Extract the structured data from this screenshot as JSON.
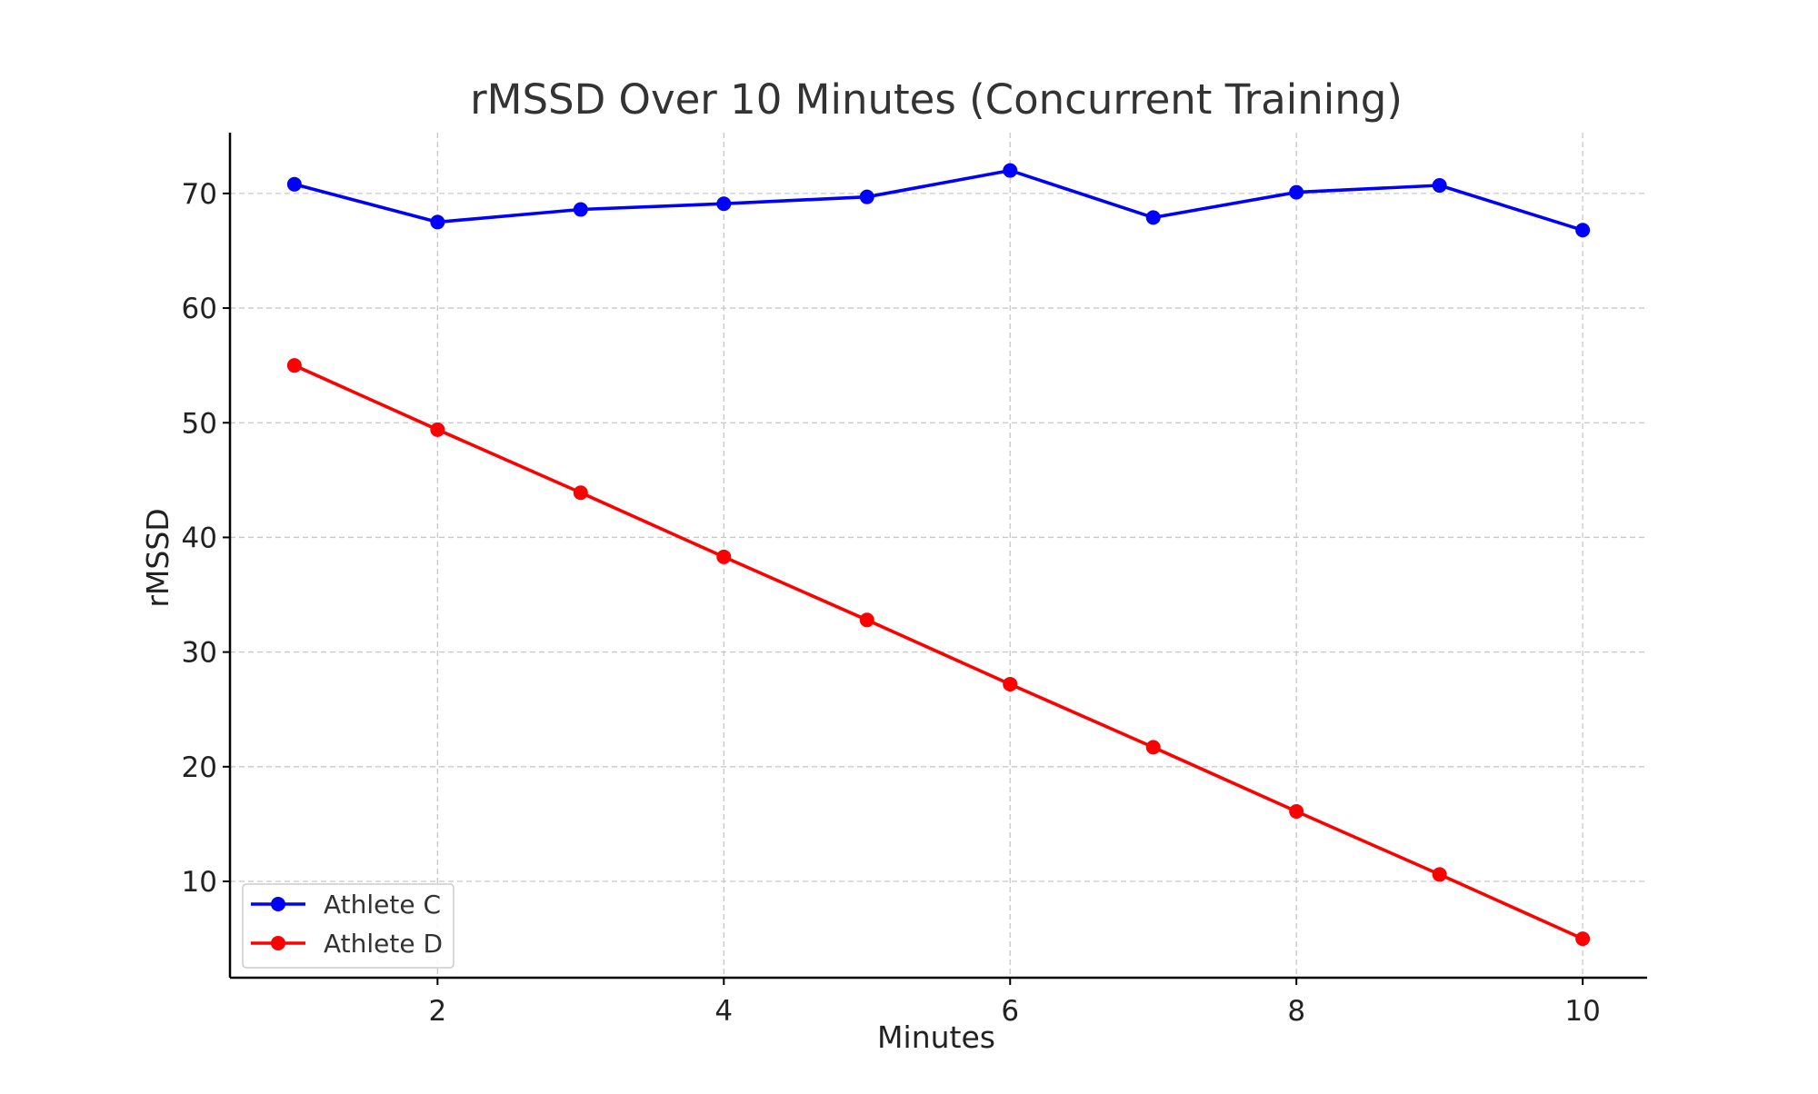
{
  "chart_data": {
    "type": "line",
    "title": "rMSSD Over 10 Minutes (Concurrent Training)",
    "xlabel": "Minutes",
    "ylabel": "rMSSD",
    "x": [
      1,
      2,
      3,
      4,
      5,
      6,
      7,
      8,
      9,
      10
    ],
    "xlim": [
      0.55,
      10.45
    ],
    "ylim": [
      1.6,
      75.3
    ],
    "xticks": [
      2,
      4,
      6,
      8,
      10
    ],
    "yticks": [
      10,
      20,
      30,
      40,
      50,
      60,
      70
    ],
    "grid": true,
    "legend_position": "bottom-left",
    "series": [
      {
        "name": "Athlete C",
        "color": "#0000ff",
        "values": [
          70.8,
          67.5,
          68.6,
          69.1,
          69.7,
          72.0,
          67.9,
          70.1,
          70.7,
          66.8
        ]
      },
      {
        "name": "Athlete D",
        "color": "#ff0000",
        "values": [
          55.0,
          49.4,
          43.9,
          38.3,
          32.8,
          27.2,
          21.7,
          16.1,
          10.6,
          5.0
        ]
      }
    ]
  }
}
